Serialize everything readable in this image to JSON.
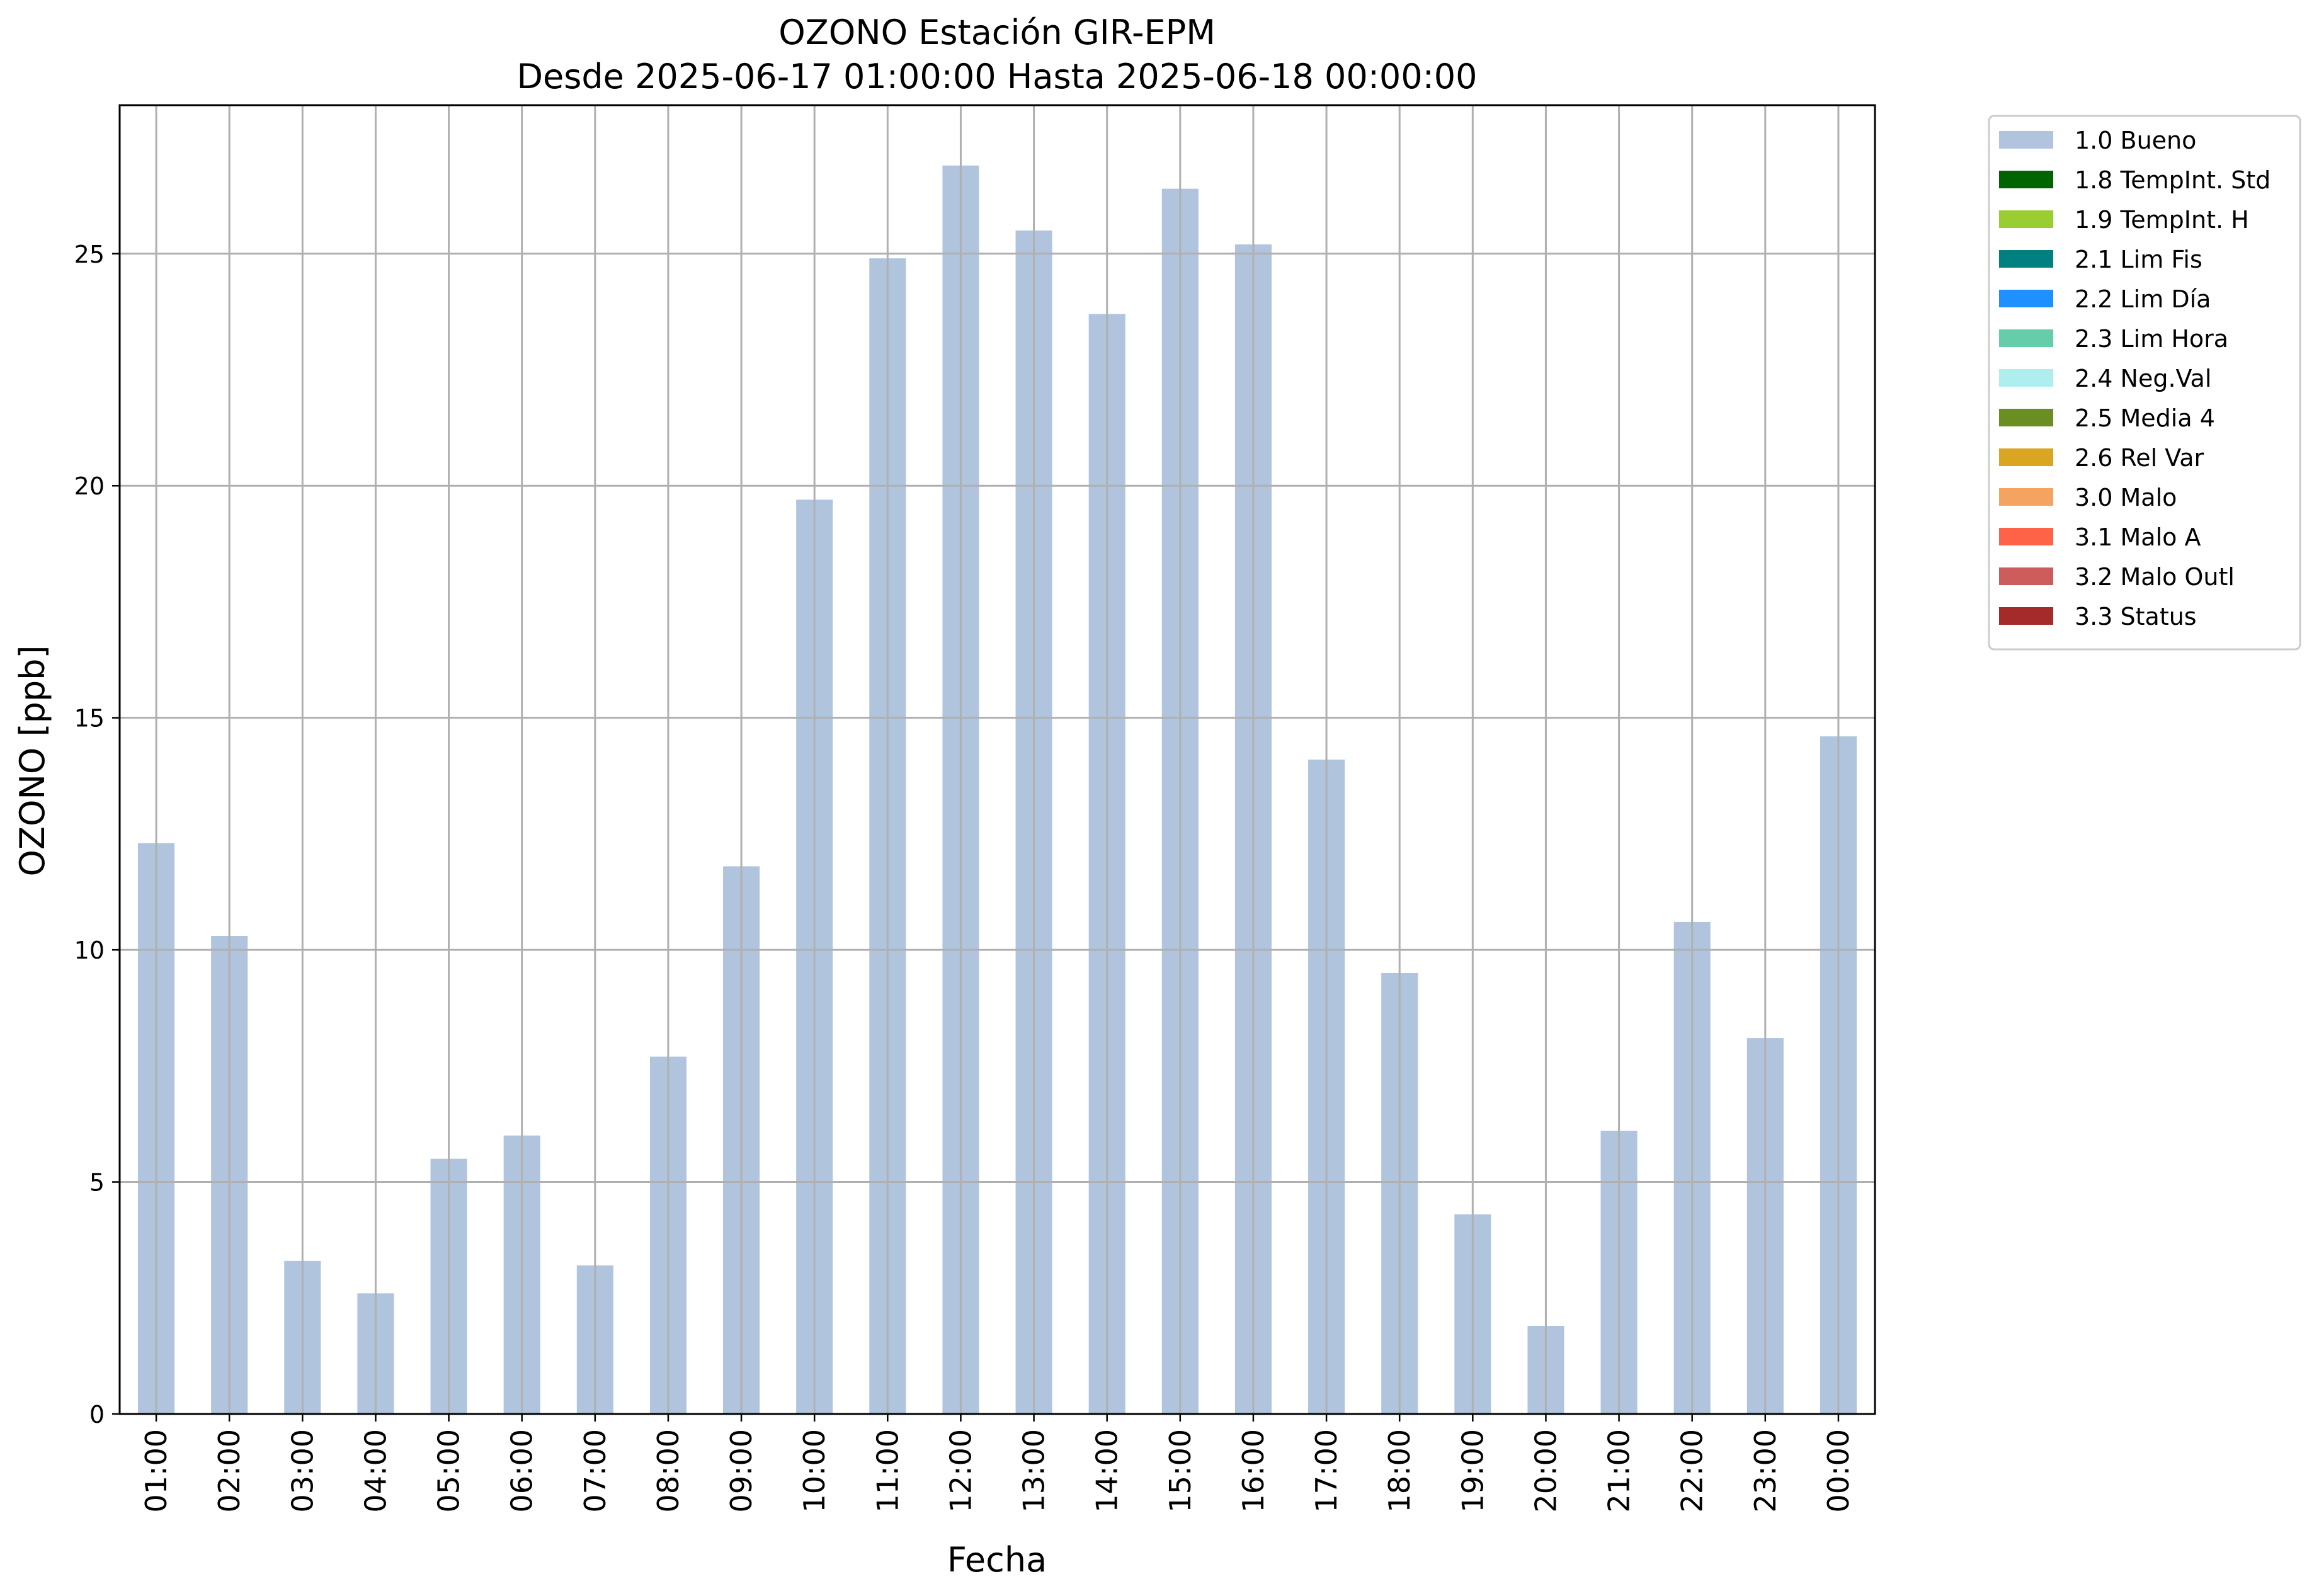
{
  "chart_data": {
    "type": "bar",
    "title": "OZONO Estación GIR-EPM",
    "subtitle": "Desde 2025-06-17 01:00:00 Hasta 2025-06-18 00:00:00",
    "xlabel": "Fecha",
    "ylabel": "OZONO [ppb]",
    "categories": [
      "01:00",
      "02:00",
      "03:00",
      "04:00",
      "05:00",
      "06:00",
      "07:00",
      "08:00",
      "09:00",
      "10:00",
      "11:00",
      "12:00",
      "13:00",
      "14:00",
      "15:00",
      "16:00",
      "17:00",
      "18:00",
      "19:00",
      "20:00",
      "21:00",
      "22:00",
      "23:00",
      "00:00"
    ],
    "series": [
      {
        "name": "1.0 Bueno",
        "color": "#b0c4de",
        "values": [
          12.3,
          10.3,
          3.3,
          2.6,
          5.5,
          6.0,
          3.2,
          7.7,
          11.8,
          19.7,
          24.9,
          26.9,
          25.5,
          23.7,
          26.4,
          25.2,
          14.1,
          9.5,
          4.3,
          1.9,
          6.1,
          10.6,
          8.1,
          14.6
        ]
      }
    ],
    "ylim": [
      0,
      28.2
    ],
    "yticks": [
      0,
      5,
      10,
      15,
      20,
      25
    ],
    "grid": true,
    "legend_position": "outside-top-right",
    "legend": [
      {
        "label": "1.0 Bueno",
        "color": "#b0c4de"
      },
      {
        "label": "1.8 TempInt. Std",
        "color": "#006400"
      },
      {
        "label": "1.9 TempInt. H",
        "color": "#9acd32"
      },
      {
        "label": "2.1 Lim Fis",
        "color": "#008080"
      },
      {
        "label": "2.2 Lim Día",
        "color": "#1e90ff"
      },
      {
        "label": "2.3 Lim Hora",
        "color": "#66cdaa"
      },
      {
        "label": "2.4 Neg.Val",
        "color": "#afeeee"
      },
      {
        "label": "2.5 Media 4",
        "color": "#6b8e23"
      },
      {
        "label": "2.6 Rel Var",
        "color": "#daa520"
      },
      {
        "label": "3.0 Malo",
        "color": "#f4a460"
      },
      {
        "label": "3.1 Malo A",
        "color": "#ff6347"
      },
      {
        "label": "3.2 Malo Outl",
        "color": "#cd5c5c"
      },
      {
        "label": "3.3 Status",
        "color": "#a52a2a"
      }
    ]
  }
}
